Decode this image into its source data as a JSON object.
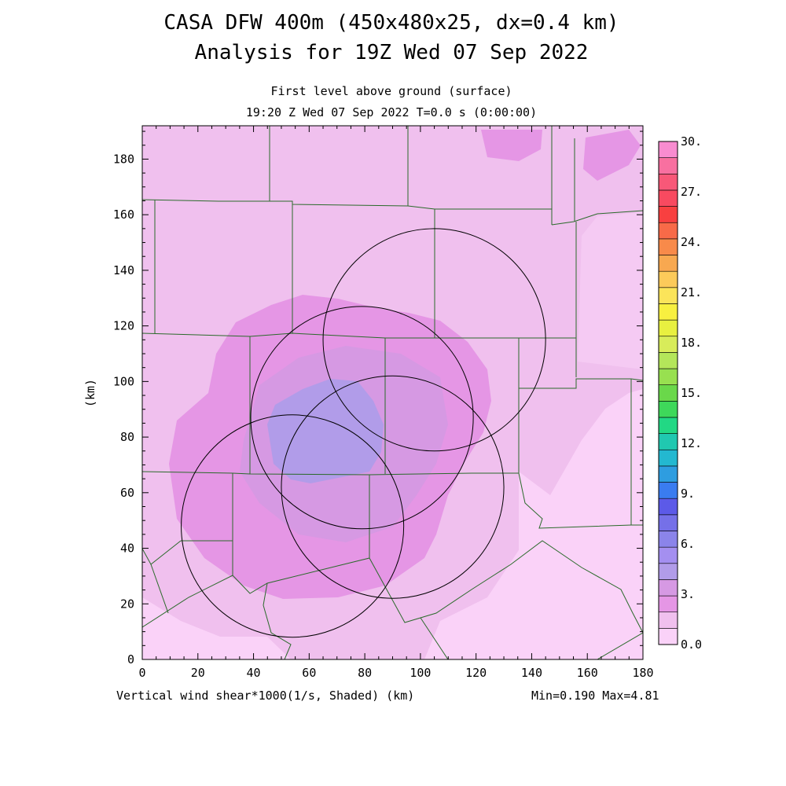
{
  "title": {
    "line1": "CASA DFW 400m (450x480x25, dx=0.4 km)",
    "line2": "Analysis for 19Z Wed 07 Sep 2022"
  },
  "subtitle": {
    "line1": "First level above ground (surface)",
    "line2": "19:20 Z Wed 07 Sep 2022   T=0.0 s (0:00:00)"
  },
  "footer": {
    "field_label": "Vertical wind shear*1000(1/s, Shaded)  (km)",
    "minmax": "Min=0.190 Max=4.81"
  },
  "axes": {
    "x": {
      "unit": "km",
      "range": [
        0,
        180
      ],
      "ticks": [
        "0",
        "20",
        "40",
        "60",
        "80",
        "100",
        "120",
        "140",
        "160",
        "180"
      ]
    },
    "y": {
      "label": "(km)",
      "range": [
        0,
        192
      ],
      "ticks": [
        "0",
        "20",
        "40",
        "60",
        "80",
        "100",
        "120",
        "140",
        "160",
        "180"
      ]
    }
  },
  "colorbar": {
    "labels": [
      "0.0",
      "3.",
      "6.",
      "9.",
      "12.",
      "15.",
      "18.",
      "21.",
      "24.",
      "27.",
      "30."
    ],
    "colors": [
      "#fad2f8",
      "#f0c0ee",
      "#e596e5",
      "#d699e3",
      "#b19ce9",
      "#a48ff0",
      "#8b84ea",
      "#7570e8",
      "#5c5ae8",
      "#3a7cf0",
      "#2e9de0",
      "#23b8d0",
      "#20c8b0",
      "#22d884",
      "#3ed85a",
      "#6ad84a",
      "#98e050",
      "#b4e65a",
      "#d8ec5a",
      "#e8f040",
      "#f8f040",
      "#fbe45a",
      "#fcca5a",
      "#f8a850",
      "#f88a4a",
      "#f86a48",
      "#f84040",
      "#f84a60",
      "#f85878",
      "#f870a0",
      "#f88cd0"
    ]
  },
  "radar_rings_km": [
    {
      "cx": 105,
      "cy": 115,
      "r": 40
    },
    {
      "cx": 79,
      "cy": 87,
      "r": 40
    },
    {
      "cx": 54,
      "cy": 48,
      "r": 40
    },
    {
      "cx": 90,
      "cy": 62,
      "r": 40
    }
  ]
}
